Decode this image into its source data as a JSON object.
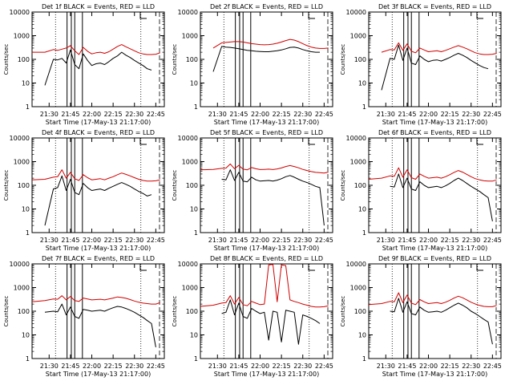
{
  "chart_data": [
    {
      "type": "line",
      "title": "Det 1f BLACK = Events, RED = LLD",
      "xlabel": "Start Time (17-May-13 21:17:00)",
      "ylabel": "Counts/sec",
      "xticks": [
        "21:30",
        "21:45",
        "22:00",
        "22:15",
        "22:30",
        "22:45"
      ],
      "yticks": [
        "1",
        "10",
        "100",
        "1000",
        "10000"
      ],
      "x": [
        0,
        3,
        5,
        6,
        7,
        8,
        9,
        10,
        11,
        12,
        13,
        14,
        15,
        16,
        17,
        18,
        19,
        20,
        21,
        22,
        23,
        24,
        25,
        26,
        27,
        28,
        29,
        30
      ],
      "series": [
        {
          "name": "BLACK = Events",
          "color": "#000000",
          "values": [
            null,
            8,
            100,
            95,
            110,
            70,
            250,
            60,
            40,
            170,
            90,
            55,
            65,
            70,
            60,
            80,
            110,
            140,
            200,
            150,
            120,
            90,
            70,
            55,
            40,
            35,
            null,
            null
          ]
        },
        {
          "name": "RED = LLD",
          "color": "#d00000",
          "values": [
            200,
            200,
            260,
            240,
            270,
            300,
            380,
            230,
            160,
            320,
            220,
            170,
            190,
            200,
            180,
            210,
            270,
            350,
            420,
            340,
            280,
            230,
            190,
            170,
            160,
            160,
            165,
            190
          ]
        }
      ]
    },
    {
      "type": "line",
      "title": "Det 2f BLACK = Events, RED = LLD",
      "xlabel": "Start Time (17-May-13 21:17:00)",
      "ylabel": "Counts/sec",
      "xticks": [
        "21:30",
        "21:45",
        "22:00",
        "22:15",
        "22:30",
        "22:45"
      ],
      "yticks": [
        "1",
        "10",
        "100",
        "1000",
        "10000"
      ],
      "x": [
        0,
        3,
        5,
        6,
        7,
        8,
        9,
        10,
        11,
        12,
        13,
        14,
        15,
        16,
        17,
        18,
        19,
        20,
        21,
        22,
        23,
        24,
        25,
        26,
        27,
        28,
        29,
        30
      ],
      "series": [
        {
          "name": "BLACK = Events",
          "color": "#000000",
          "values": [
            null,
            30,
            350,
            330,
            320,
            300,
            280,
            260,
            240,
            230,
            220,
            215,
            210,
            210,
            220,
            230,
            250,
            280,
            320,
            330,
            300,
            260,
            230,
            210,
            200,
            200,
            null,
            null
          ]
        },
        {
          "name": "RED = LLD",
          "color": "#d00000",
          "values": [
            null,
            300,
            500,
            520,
            540,
            560,
            560,
            540,
            500,
            460,
            440,
            420,
            410,
            420,
            440,
            480,
            540,
            620,
            700,
            650,
            560,
            460,
            380,
            330,
            300,
            290,
            290,
            300
          ]
        }
      ]
    },
    {
      "type": "line",
      "title": "Det 3f BLACK = Events, RED = LLD",
      "xlabel": "Start Time (17-May-13 21:17:00)",
      "ylabel": "Counts/sec",
      "xticks": [
        "21:30",
        "21:45",
        "22:00",
        "22:15",
        "22:30",
        "22:45"
      ],
      "yticks": [
        "1",
        "10",
        "100",
        "1000",
        "10000"
      ],
      "x": [
        0,
        3,
        5,
        6,
        7,
        8,
        9,
        10,
        11,
        12,
        13,
        14,
        15,
        16,
        17,
        18,
        19,
        20,
        21,
        22,
        23,
        24,
        25,
        26,
        27,
        28,
        29,
        30
      ],
      "series": [
        {
          "name": "BLACK = Events",
          "color": "#000000",
          "values": [
            null,
            5,
            110,
            100,
            400,
            90,
            300,
            70,
            60,
            140,
            100,
            80,
            90,
            95,
            85,
            100,
            120,
            150,
            180,
            150,
            120,
            90,
            70,
            55,
            45,
            40,
            null,
            null
          ]
        },
        {
          "name": "RED = LLD",
          "color": "#d00000",
          "values": [
            null,
            200,
            260,
            250,
            500,
            240,
            450,
            220,
            190,
            300,
            250,
            210,
            220,
            230,
            210,
            240,
            280,
            330,
            380,
            330,
            280,
            230,
            190,
            170,
            160,
            160,
            165,
            180
          ]
        }
      ]
    },
    {
      "type": "line",
      "title": "Det 4f BLACK = Events, RED = LLD",
      "xlabel": "Start Time (17-May-13 21:17:00)",
      "ylabel": "Counts/sec",
      "xticks": [
        "21:30",
        "21:45",
        "22:00",
        "22:15",
        "22:30",
        "22:45"
      ],
      "yticks": [
        "1",
        "10",
        "100",
        "1000",
        "10000"
      ],
      "x": [
        0,
        3,
        5,
        6,
        7,
        8,
        9,
        10,
        11,
        12,
        13,
        14,
        15,
        16,
        17,
        18,
        19,
        20,
        21,
        22,
        23,
        24,
        25,
        26,
        27,
        28,
        29,
        30
      ],
      "series": [
        {
          "name": "BLACK = Events",
          "color": "#000000",
          "values": [
            null,
            2,
            70,
            80,
            250,
            60,
            180,
            50,
            40,
            120,
            80,
            60,
            65,
            70,
            60,
            75,
            90,
            110,
            130,
            110,
            90,
            70,
            55,
            45,
            35,
            40,
            null,
            null
          ]
        },
        {
          "name": "RED = LLD",
          "color": "#d00000",
          "values": [
            170,
            180,
            220,
            230,
            450,
            200,
            350,
            190,
            160,
            280,
            210,
            170,
            180,
            190,
            170,
            200,
            230,
            280,
            330,
            290,
            250,
            210,
            180,
            160,
            150,
            150,
            155,
            170
          ]
        }
      ]
    },
    {
      "type": "line",
      "title": "Det 5f BLACK = Events, RED = LLD",
      "xlabel": "Start Time (17-May-13 21:17:00)",
      "ylabel": "Counts/sec",
      "xticks": [
        "21:30",
        "21:45",
        "22:00",
        "22:15",
        "22:30",
        "22:45"
      ],
      "yticks": [
        "1",
        "10",
        "100",
        "1000",
        "10000"
      ],
      "x": [
        0,
        3,
        5,
        6,
        7,
        8,
        9,
        10,
        11,
        12,
        13,
        14,
        15,
        16,
        17,
        18,
        19,
        20,
        21,
        22,
        23,
        24,
        25,
        26,
        27,
        28,
        29,
        30
      ],
      "series": [
        {
          "name": "BLACK = Events",
          "color": "#000000",
          "values": [
            null,
            null,
            180,
            170,
            450,
            160,
            350,
            150,
            140,
            220,
            170,
            150,
            155,
            160,
            150,
            165,
            190,
            230,
            260,
            220,
            180,
            150,
            130,
            110,
            90,
            80,
            2,
            null
          ]
        },
        {
          "name": "RED = LLD",
          "color": "#d00000",
          "values": [
            450,
            470,
            520,
            530,
            800,
            500,
            700,
            480,
            450,
            560,
            500,
            460,
            470,
            480,
            460,
            490,
            540,
            620,
            680,
            620,
            550,
            470,
            420,
            380,
            350,
            340,
            330,
            360
          ]
        }
      ]
    },
    {
      "type": "line",
      "title": "Det 6f BLACK = Events, RED = LLD",
      "xlabel": "Start Time (17-May-13 21:17:00)",
      "ylabel": "Counts/sec",
      "xticks": [
        "21:30",
        "21:45",
        "22:00",
        "22:15",
        "22:30",
        "22:45"
      ],
      "yticks": [
        "1",
        "10",
        "100",
        "1000",
        "10000"
      ],
      "x": [
        0,
        3,
        5,
        6,
        7,
        8,
        9,
        10,
        11,
        12,
        13,
        14,
        15,
        16,
        17,
        18,
        19,
        20,
        21,
        22,
        23,
        24,
        25,
        26,
        27,
        28,
        29,
        30
      ],
      "series": [
        {
          "name": "BLACK = Events",
          "color": "#000000",
          "values": [
            null,
            null,
            90,
            85,
            300,
            80,
            200,
            70,
            60,
            140,
            100,
            80,
            85,
            90,
            80,
            95,
            120,
            160,
            200,
            160,
            120,
            90,
            70,
            55,
            40,
            30,
            3,
            null
          ]
        },
        {
          "name": "RED = LLD",
          "color": "#d00000",
          "values": [
            180,
            200,
            250,
            240,
            550,
            220,
            450,
            210,
            180,
            300,
            240,
            200,
            210,
            220,
            200,
            230,
            280,
            350,
            420,
            360,
            290,
            230,
            190,
            170,
            155,
            150,
            150,
            170
          ]
        }
      ]
    },
    {
      "type": "line",
      "title": "Det 7f BLACK = Events, RED = LLD",
      "xlabel": "Start Time (17-May-13 21:17:00)",
      "ylabel": "Counts/sec",
      "xticks": [
        "21:30",
        "21:45",
        "22:00",
        "22:15",
        "22:30",
        "22:45"
      ],
      "yticks": [
        "1",
        "10",
        "100",
        "1000",
        "10000"
      ],
      "x": [
        0,
        3,
        5,
        6,
        7,
        8,
        9,
        10,
        11,
        12,
        13,
        14,
        15,
        16,
        17,
        18,
        19,
        20,
        21,
        22,
        23,
        24,
        25,
        26,
        27,
        28,
        29,
        30
      ],
      "series": [
        {
          "name": "BLACK = Events",
          "color": "#000000",
          "values": [
            null,
            90,
            100,
            95,
            200,
            70,
            150,
            60,
            50,
            120,
            110,
            100,
            105,
            110,
            100,
            120,
            140,
            160,
            150,
            130,
            110,
            90,
            70,
            55,
            40,
            30,
            3,
            null
          ]
        },
        {
          "name": "RED = LLD",
          "color": "#d00000",
          "values": [
            250,
            280,
            330,
            320,
            450,
            300,
            420,
            280,
            260,
            360,
            330,
            300,
            310,
            320,
            300,
            330,
            360,
            400,
            380,
            350,
            310,
            270,
            240,
            220,
            210,
            200,
            200,
            230
          ]
        }
      ]
    },
    {
      "type": "line",
      "title": "Det 8f BLACK = Events, RED = LLD",
      "xlabel": "Start Time (17-May-13 21:17:00)",
      "ylabel": "Counts/sec",
      "xticks": [
        "21:30",
        "21:45",
        "22:00",
        "22:15",
        "22:30",
        "22:45"
      ],
      "yticks": [
        "1",
        "10",
        "100",
        "1000",
        "10000"
      ],
      "x": [
        0,
        3,
        5,
        6,
        7,
        8,
        9,
        10,
        11,
        12,
        13,
        14,
        15,
        16,
        17,
        18,
        19,
        20,
        21,
        22,
        23,
        24,
        25,
        26,
        27,
        28,
        29,
        30
      ],
      "series": [
        {
          "name": "BLACK = Events",
          "color": "#000000",
          "values": [
            null,
            null,
            80,
            90,
            300,
            70,
            220,
            60,
            50,
            130,
            100,
            80,
            90,
            6,
            100,
            90,
            5,
            110,
            100,
            90,
            4,
            70,
            60,
            50,
            40,
            30,
            null,
            null
          ]
        },
        {
          "name": "RED = LLD",
          "color": "#d00000",
          "values": [
            160,
            180,
            220,
            230,
            450,
            200,
            380,
            190,
            170,
            260,
            220,
            190,
            200,
            9000,
            9500,
            250,
            9000,
            8500,
            300,
            260,
            230,
            200,
            180,
            160,
            150,
            150,
            155,
            170
          ]
        }
      ]
    },
    {
      "type": "line",
      "title": "Det 9f BLACK = Events, RED = LLD",
      "xlabel": "Start Time (17-May-13 21:17:00)",
      "ylabel": "Counts/sec",
      "xticks": [
        "21:30",
        "21:45",
        "22:00",
        "22:15",
        "22:30",
        "22:45"
      ],
      "yticks": [
        "1",
        "10",
        "100",
        "1000",
        "10000"
      ],
      "x": [
        0,
        3,
        5,
        6,
        7,
        8,
        9,
        10,
        11,
        12,
        13,
        14,
        15,
        16,
        17,
        18,
        19,
        20,
        21,
        22,
        23,
        24,
        25,
        26,
        27,
        28,
        29,
        30
      ],
      "series": [
        {
          "name": "BLACK = Events",
          "color": "#000000",
          "values": [
            null,
            null,
            100,
            95,
            350,
            90,
            250,
            80,
            70,
            150,
            110,
            90,
            95,
            100,
            90,
            110,
            140,
            180,
            220,
            180,
            140,
            100,
            80,
            60,
            45,
            35,
            4,
            null
          ]
        },
        {
          "name": "RED = LLD",
          "color": "#d00000",
          "values": [
            190,
            210,
            260,
            250,
            600,
            230,
            480,
            220,
            190,
            310,
            250,
            210,
            220,
            230,
            210,
            240,
            290,
            360,
            430,
            370,
            300,
            240,
            200,
            175,
            160,
            155,
            155,
            175
          ]
        }
      ]
    }
  ]
}
